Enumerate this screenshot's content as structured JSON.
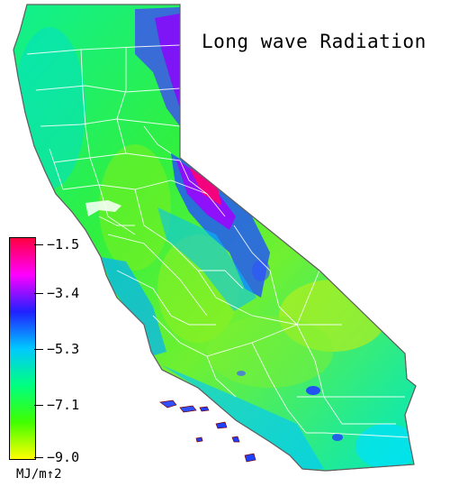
{
  "title": "Long wave Radiation",
  "legend": {
    "unit": "MJ/m↑2",
    "ticks": [
      "−1.5",
      "−3.4",
      "−5.3",
      "−7.1",
      "−9.0"
    ],
    "colors": [
      "#ff0040",
      "#ff00ff",
      "#2020ff",
      "#00c8ff",
      "#00ff7f",
      "#40ff00",
      "#ffff00"
    ]
  },
  "map": {
    "region": "California",
    "palette": {
      "north_coast": "#00e8a0",
      "central_valley": "#40f020",
      "sierra_high": "#7000e0",
      "sierra_peak": "#ff0070",
      "desert": "#a8f020",
      "south_coast": "#00b8ff",
      "boundaries": "#ffffff",
      "ocean": "#ffffff"
    }
  }
}
